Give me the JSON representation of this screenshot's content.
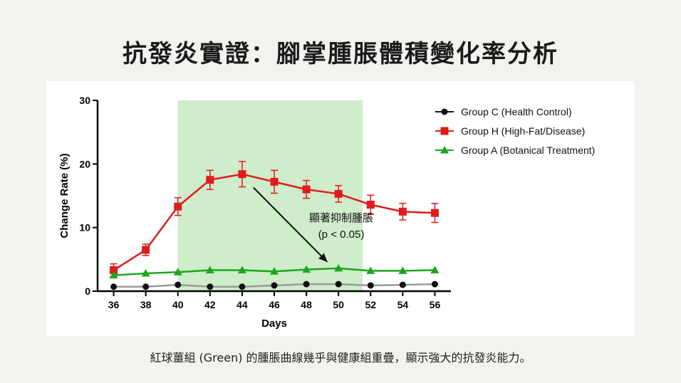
{
  "title": "抗發炎實證：腳掌腫脹體積變化率分析",
  "caption": "紅球薑組 (Green) 的腫脹曲線幾乎與健康組重疊，顯示強大的抗發炎能力。",
  "colors": {
    "group_c": "#111111",
    "group_h": "#e01b1b",
    "group_a": "#1ea61e",
    "highlight": "#cfeccb"
  },
  "chart_data": {
    "type": "line",
    "xlabel": "Days",
    "ylabel": "Change Rate (%)",
    "x": [
      36,
      38,
      40,
      42,
      44,
      46,
      48,
      50,
      52,
      54,
      56
    ],
    "xlim": [
      35,
      57
    ],
    "ylim": [
      0,
      30
    ],
    "xticks": [
      "36",
      "38",
      "40",
      "42",
      "44",
      "46",
      "48",
      "50",
      "52",
      "54",
      "56"
    ],
    "yticks": [
      "0",
      "10",
      "20",
      "30"
    ],
    "highlight_x_range": [
      40,
      51.5
    ],
    "legend_position": "top-right",
    "grid": false,
    "series": [
      {
        "name": "Group C (Health Control)",
        "marker": "circle",
        "values": [
          0.7,
          0.7,
          1.0,
          0.7,
          0.7,
          0.9,
          1.1,
          1.1,
          0.9,
          1.0,
          1.1
        ]
      },
      {
        "name": "Group H (High-Fat/Disease)",
        "marker": "square",
        "values": [
          3.3,
          6.5,
          13.3,
          17.5,
          18.4,
          17.2,
          16.0,
          15.3,
          13.6,
          12.5,
          12.3
        ],
        "errors": [
          1.0,
          0.9,
          1.4,
          1.5,
          2.0,
          1.8,
          1.4,
          1.3,
          1.5,
          1.3,
          1.5
        ]
      },
      {
        "name": "Group A (Botanical Treatment)",
        "marker": "triangle",
        "values": [
          2.5,
          2.8,
          3.0,
          3.3,
          3.3,
          3.1,
          3.4,
          3.6,
          3.2,
          3.2,
          3.3
        ]
      }
    ],
    "annotation": {
      "line1": "顯著抑制腫脹",
      "line2": "(p < 0.05)",
      "arrow_from": [
        44.7,
        16.3
      ],
      "arrow_to": [
        49.3,
        4.6
      ]
    }
  }
}
